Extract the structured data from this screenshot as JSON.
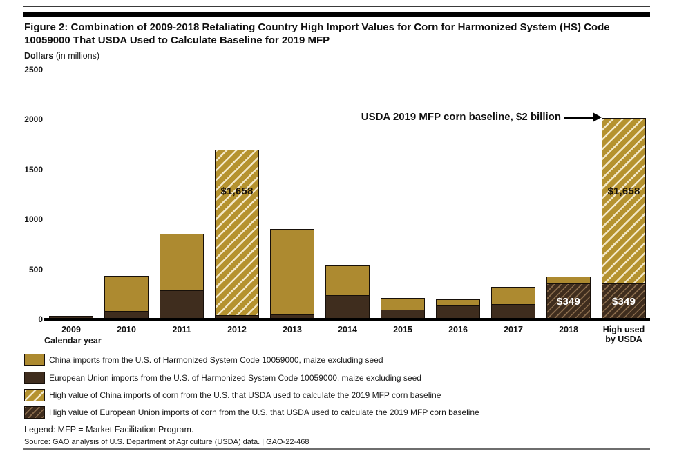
{
  "header": {
    "title": "Figure 2: Combination of 2009-2018 Retaliating Country High Import Values for Corn for Harmonized System (HS) Code 10059000 That USDA Used to Calculate Baseline for 2019 MFP",
    "y_axis_unit_bold": "Dollars",
    "y_axis_unit_normal": " (in millions)"
  },
  "chart_data": {
    "type": "bar",
    "stacked": true,
    "unit": "US dollars in millions",
    "title": "Combination of 2009-2018 retaliating country high import values for corn (HS 10059000) used for 2019 MFP baseline",
    "xlabel": "Calendar year",
    "ylabel": "Dollars (in millions)",
    "ylim": [
      0,
      2500
    ],
    "y_ticks": [
      0,
      500,
      1000,
      1500,
      2000,
      2500
    ],
    "grid": false,
    "legend_position": "below",
    "categories": [
      "2009",
      "2010",
      "2011",
      "2012",
      "2013",
      "2014",
      "2015",
      "2016",
      "2017",
      "2018",
      "High used by USDA"
    ],
    "series": [
      {
        "name": "European Union imports from the U.S. of Harmonized System Code 10059000, maize excluding seed",
        "color": "#3f2d1e",
        "values": [
          30,
          76,
          283,
          32,
          41,
          235,
          90,
          131,
          145,
          349,
          349
        ],
        "hatched": [
          false,
          false,
          false,
          false,
          false,
          false,
          false,
          false,
          false,
          true,
          true
        ]
      },
      {
        "name": "China imports from the U.S. of Harmonized System Code 10059000, maize excluding seed",
        "color": "#ad8a30",
        "values": [
          0,
          352,
          566,
          1658,
          856,
          296,
          117,
          62,
          172,
          70,
          1658
        ],
        "hatched": [
          false,
          false,
          false,
          true,
          false,
          false,
          false,
          false,
          false,
          false,
          true
        ]
      }
    ],
    "value_labels": [
      {
        "bar_index": 3,
        "series": "china",
        "text": "$1,658",
        "color": "#17100a"
      },
      {
        "bar_index": 10,
        "series": "china",
        "text": "$1,658",
        "color": "#17100a"
      },
      {
        "bar_index": 9,
        "series": "eu",
        "text": "$349",
        "color": "#ffffff"
      },
      {
        "bar_index": 10,
        "series": "eu",
        "text": "$349",
        "color": "#ffffff"
      }
    ],
    "annotation": {
      "text": "USDA 2019 MFP corn baseline, $2 billion",
      "points_to": "High used by USDA bar top",
      "value": 2007
    },
    "colors": {
      "china_gold": "#ad8a30",
      "eu_brown": "#3f2d1e",
      "hatch_stripe_gold": "#f2e7c7",
      "hatch_stripe_brown": "#8a6c4c"
    }
  },
  "legend": {
    "items": [
      {
        "swatch": "solid-gold",
        "label": "China imports from the U.S. of Harmonized System Code 10059000, maize excluding seed"
      },
      {
        "swatch": "solid-brown",
        "label": "European Union imports from the U.S. of Harmonized System Code 10059000, maize excluding seed"
      },
      {
        "swatch": "hatch-gold",
        "label": "High value of China imports of corn from the U.S. that USDA used to calculate the 2019 MFP corn baseline"
      },
      {
        "swatch": "hatch-brown",
        "label": "High value of European Union imports of corn from the U.S. that USDA used to calculate the 2019 MFP corn baseline"
      }
    ]
  },
  "footer": {
    "legend_note": "Legend: MFP = Market Facilitation Program.",
    "source": "Source: GAO analysis of U.S. Department of Agriculture (USDA) data.  |  GAO-22-468"
  }
}
